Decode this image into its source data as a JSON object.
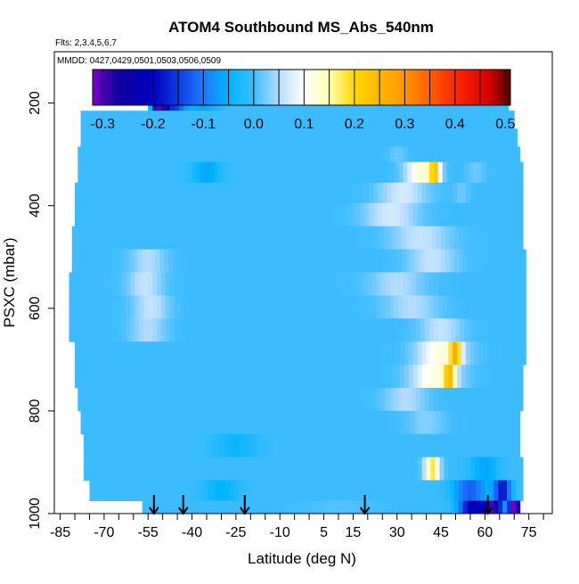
{
  "chart_data": {
    "type": "heatmap",
    "title": "ATOM4 Southbound MS_Abs_540nm",
    "flights_note": "Flts: 2,3,4,5,6,7",
    "dates_note": "MMDD: 0427,0429,0501,0503,0506,0509",
    "xlabel": "Latitude (deg N)",
    "ylabel": "PSXC (mbar)",
    "xlim": [
      -87,
      83
    ],
    "ylim": [
      1000,
      100
    ],
    "y_reversed": true,
    "x_ticks": [
      -85,
      -70,
      -55,
      -40,
      -25,
      -10,
      5,
      15,
      30,
      45,
      60,
      75
    ],
    "x_tick_labels": [
      "-85",
      "-70",
      "-55",
      "-40",
      "-25",
      "-10",
      "5",
      "15",
      "30",
      "45",
      "60",
      "75"
    ],
    "x_minor_ticks": [
      -85,
      -80,
      -75,
      -70,
      -65,
      -60,
      -55,
      -50,
      -45,
      -40,
      -35,
      -30,
      -25,
      -20,
      -15,
      -10,
      -5,
      0,
      5,
      10,
      15,
      20,
      25,
      30,
      35,
      40,
      45,
      50,
      55,
      60,
      65,
      70,
      75,
      80
    ],
    "y_ticks": [
      200,
      400,
      600,
      800,
      1000
    ],
    "y_tick_labels": [
      "200",
      "400",
      "600",
      "800",
      "1000"
    ],
    "colorbar": {
      "min": -0.32,
      "max": 0.51,
      "ticks": [
        -0.3,
        -0.2,
        -0.1,
        0.0,
        0.1,
        0.2,
        0.3,
        0.4,
        0.5
      ],
      "tick_labels": [
        "-0.3",
        "-0.2",
        "-0.1",
        "0.0",
        "0.1",
        "0.2",
        "0.3",
        "0.4",
        "0.5"
      ],
      "stops": [
        {
          "v": -0.32,
          "color": "#7a00c8"
        },
        {
          "v": -0.27,
          "color": "#1000a0"
        },
        {
          "v": -0.2,
          "color": "#0000c0"
        },
        {
          "v": -0.1,
          "color": "#1e78ff"
        },
        {
          "v": -0.05,
          "color": "#00b4ff"
        },
        {
          "v": 0.0,
          "color": "#3cbcff"
        },
        {
          "v": 0.05,
          "color": "#b4dcff"
        },
        {
          "v": 0.1,
          "color": "#ffffff"
        },
        {
          "v": 0.15,
          "color": "#ffffb0"
        },
        {
          "v": 0.2,
          "color": "#ffd700"
        },
        {
          "v": 0.3,
          "color": "#ff9600"
        },
        {
          "v": 0.4,
          "color": "#ff2800"
        },
        {
          "v": 0.47,
          "color": "#d20000"
        },
        {
          "v": 0.51,
          "color": "#500000"
        }
      ]
    },
    "arrow_latitudes": [
      -53,
      -43,
      -22,
      19,
      61
    ],
    "layers": [
      {
        "p_top": 170,
        "p_bot": 215,
        "lat_min": -55,
        "lat_max": 68,
        "anoms": [
          {
            "lat": -51,
            "w": 5,
            "v": -0.28
          },
          {
            "lat": -46,
            "w": 8,
            "v": -0.15
          },
          {
            "lat": -36,
            "w": 10,
            "v": -0.06
          }
        ]
      },
      {
        "p_top": 215,
        "p_bot": 250,
        "lat_min": -78,
        "lat_max": 70,
        "anoms": []
      },
      {
        "p_top": 250,
        "p_bot": 285,
        "lat_min": -78,
        "lat_max": 71,
        "anoms": []
      },
      {
        "p_top": 285,
        "p_bot": 315,
        "lat_min": -79,
        "lat_max": 72,
        "anoms": [
          {
            "lat": 30,
            "w": 6,
            "v": 0.02
          }
        ]
      },
      {
        "p_top": 315,
        "p_bot": 355,
        "lat_min": -79,
        "lat_max": 73,
        "anoms": [
          {
            "lat": -35,
            "w": 10,
            "v": -0.06
          },
          {
            "lat": 38,
            "w": 10,
            "v": 0.13
          },
          {
            "lat": 43,
            "w": 4,
            "v": 0.18
          },
          {
            "lat": 57,
            "w": 6,
            "v": 0.02
          }
        ]
      },
      {
        "p_top": 355,
        "p_bot": 395,
        "lat_min": -80,
        "lat_max": 73,
        "anoms": [
          {
            "lat": 32,
            "w": 16,
            "v": 0.07
          },
          {
            "lat": 52,
            "w": 5,
            "v": 0.02
          }
        ]
      },
      {
        "p_top": 395,
        "p_bot": 440,
        "lat_min": -80,
        "lat_max": 73,
        "anoms": [
          {
            "lat": 28,
            "w": 18,
            "v": 0.07
          }
        ]
      },
      {
        "p_top": 440,
        "p_bot": 485,
        "lat_min": -81,
        "lat_max": 73,
        "anoms": [
          {
            "lat": 38,
            "w": 20,
            "v": 0.06
          }
        ]
      },
      {
        "p_top": 485,
        "p_bot": 530,
        "lat_min": -81,
        "lat_max": 74,
        "anoms": [
          {
            "lat": -55,
            "w": 12,
            "v": 0.05
          },
          {
            "lat": 42,
            "w": 16,
            "v": 0.06
          }
        ]
      },
      {
        "p_top": 530,
        "p_bot": 575,
        "lat_min": -82,
        "lat_max": 74,
        "anoms": [
          {
            "lat": -56,
            "w": 12,
            "v": 0.06
          },
          {
            "lat": 30,
            "w": 18,
            "v": 0.05
          }
        ]
      },
      {
        "p_top": 575,
        "p_bot": 620,
        "lat_min": -82,
        "lat_max": 74,
        "anoms": [
          {
            "lat": -54,
            "w": 12,
            "v": 0.06
          },
          {
            "lat": 35,
            "w": 18,
            "v": 0.05
          }
        ]
      },
      {
        "p_top": 620,
        "p_bot": 665,
        "lat_min": -82,
        "lat_max": 74,
        "anoms": [
          {
            "lat": -55,
            "w": 12,
            "v": 0.05
          },
          {
            "lat": 45,
            "w": 14,
            "v": 0.06
          }
        ]
      },
      {
        "p_top": 665,
        "p_bot": 710,
        "lat_min": -80,
        "lat_max": 74,
        "anoms": [
          {
            "lat": 45,
            "w": 16,
            "v": 0.12
          },
          {
            "lat": 50,
            "w": 4,
            "v": 0.18
          }
        ]
      },
      {
        "p_top": 710,
        "p_bot": 755,
        "lat_min": -80,
        "lat_max": 73,
        "anoms": [
          {
            "lat": 43,
            "w": 16,
            "v": 0.12
          },
          {
            "lat": 48,
            "w": 4,
            "v": 0.17
          }
        ]
      },
      {
        "p_top": 755,
        "p_bot": 800,
        "lat_min": -79,
        "lat_max": 73,
        "anoms": [
          {
            "lat": 33,
            "w": 14,
            "v": 0.05
          }
        ]
      },
      {
        "p_top": 800,
        "p_bot": 845,
        "lat_min": -78,
        "lat_max": 72,
        "anoms": [
          {
            "lat": 40,
            "w": 12,
            "v": 0.03
          }
        ]
      },
      {
        "p_top": 845,
        "p_bot": 890,
        "lat_min": -77,
        "lat_max": 72,
        "anoms": [
          {
            "lat": -25,
            "w": 15,
            "v": -0.04
          }
        ]
      },
      {
        "p_top": 890,
        "p_bot": 935,
        "lat_min": -77,
        "lat_max": 73,
        "anoms": [
          {
            "lat": 42,
            "w": 5,
            "v": 0.18
          },
          {
            "lat": 60,
            "w": 10,
            "v": -0.06
          }
        ]
      },
      {
        "p_top": 935,
        "p_bot": 975,
        "lat_min": -75,
        "lat_max": 73,
        "anoms": [
          {
            "lat": -30,
            "w": 12,
            "v": -0.05
          },
          {
            "lat": 55,
            "w": 12,
            "v": -0.12
          },
          {
            "lat": 66,
            "w": 6,
            "v": -0.18
          }
        ]
      },
      {
        "p_top": 975,
        "p_bot": 1005,
        "lat_min": -57,
        "lat_max": 72,
        "anoms": [
          {
            "lat": 10,
            "w": 20,
            "v": 0.01
          },
          {
            "lat": 56,
            "w": 10,
            "v": -0.22
          },
          {
            "lat": 63,
            "w": 6,
            "v": -0.27
          },
          {
            "lat": 70,
            "w": 4,
            "v": -0.32
          }
        ]
      }
    ]
  }
}
